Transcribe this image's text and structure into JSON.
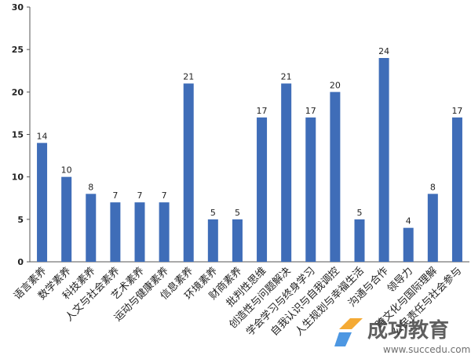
{
  "chart_data": {
    "type": "bar",
    "categories": [
      "语言素养",
      "数学素养",
      "科技素养",
      "人文与社会素养",
      "艺术素养",
      "运动与健康素养",
      "信息素养",
      "环境素养",
      "财商素养",
      "批判性思维",
      "创造性与问题解决",
      "学会学习与终身学习",
      "自我认识与自我调控",
      "人生规划与幸福生活",
      "沟通与合作",
      "领导力",
      "跨文化与国际理解",
      "公民责任与社会参与"
    ],
    "values": [
      14,
      10,
      8,
      7,
      7,
      7,
      21,
      5,
      5,
      17,
      21,
      17,
      20,
      5,
      24,
      4,
      8,
      17
    ],
    "color": "#3f6db8",
    "ylim": [
      0,
      30
    ],
    "yticks": [
      0,
      5,
      10,
      15,
      20,
      25,
      30
    ],
    "grid": false,
    "watermark": {
      "title": "成功教育",
      "url": "www.succedu.com"
    }
  }
}
